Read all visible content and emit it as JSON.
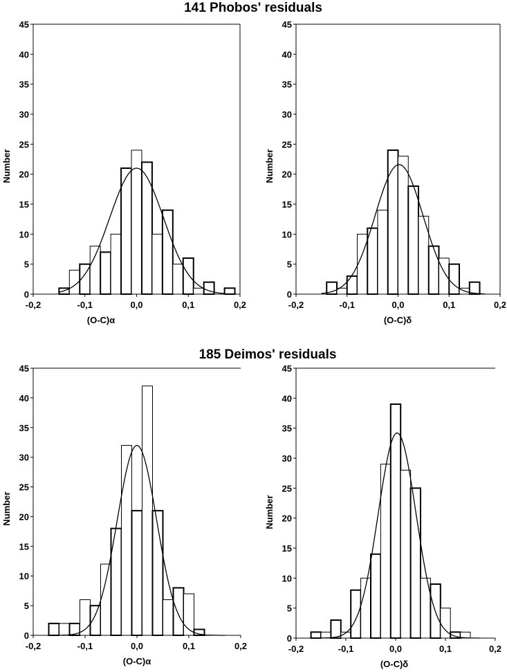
{
  "figure": {
    "phobos_title": "141 Phobos' residuals",
    "deimos_title": "185 Deimos' residuals"
  },
  "chart_data": [
    {
      "type": "bar",
      "group": "Phobos",
      "xlabel": "(O-C)α",
      "ylabel": "Number",
      "xlim": [
        -0.2,
        0.2
      ],
      "ylim": [
        0,
        45
      ],
      "x_ticks": [
        "-0,2",
        "-0,1",
        "0,0",
        "0,1",
        "0,2"
      ],
      "y_ticks": [
        "0",
        "5",
        "10",
        "15",
        "20",
        "25",
        "30",
        "35",
        "40",
        "45"
      ],
      "bins": [
        -0.14,
        -0.12,
        -0.1,
        -0.08,
        -0.06,
        -0.04,
        -0.02,
        0.0,
        0.02,
        0.04,
        0.06,
        0.08,
        0.1,
        0.12,
        0.14,
        0.16,
        0.18
      ],
      "values": [
        1,
        4,
        5,
        8,
        7,
        10,
        21,
        24,
        22,
        10,
        14,
        5,
        6,
        1,
        2,
        0,
        1
      ],
      "bin_width": 0.02,
      "fit": {
        "mean": 0.0,
        "sigma": 0.052,
        "peak": 21
      }
    },
    {
      "type": "bar",
      "group": "Phobos",
      "xlabel": "(O-C)δ",
      "ylabel": "Number",
      "xlim": [
        -0.2,
        0.2
      ],
      "ylim": [
        0,
        45
      ],
      "x_ticks": [
        "-0,2",
        "-0,1",
        "0,0",
        "0,1",
        "0,2"
      ],
      "y_ticks": [
        "0",
        "5",
        "10",
        "15",
        "20",
        "25",
        "30",
        "35",
        "40",
        "45"
      ],
      "bins": [
        -0.13,
        -0.11,
        -0.09,
        -0.07,
        -0.05,
        -0.03,
        -0.01,
        0.01,
        0.03,
        0.05,
        0.07,
        0.09,
        0.11,
        0.13,
        0.15
      ],
      "values": [
        2,
        1,
        3,
        10,
        11,
        14,
        24,
        23,
        18,
        13,
        8,
        6,
        5,
        1,
        2
      ],
      "bin_width": 0.02,
      "fit": {
        "mean": 0.002,
        "sigma": 0.047,
        "peak": 21.6
      }
    },
    {
      "type": "bar",
      "group": "Deimos",
      "xlabel": "(O-C)α",
      "ylabel": "Number",
      "xlim": [
        -0.2,
        0.2
      ],
      "ylim": [
        0,
        45
      ],
      "x_ticks": [
        "-0,2",
        "-0,1",
        "0,0",
        "0,1",
        "0,2"
      ],
      "y_ticks": [
        "0",
        "5",
        "10",
        "15",
        "20",
        "25",
        "30",
        "35",
        "40",
        "45"
      ],
      "bins": [
        -0.16,
        -0.14,
        -0.12,
        -0.1,
        -0.08,
        -0.06,
        -0.04,
        -0.02,
        0.0,
        0.02,
        0.04,
        0.06,
        0.08,
        0.1,
        0.12
      ],
      "values": [
        2,
        2,
        2,
        6,
        5,
        12,
        18,
        32,
        21,
        42,
        21,
        6,
        8,
        7,
        1
      ],
      "bin_width": 0.02,
      "fit": {
        "mean": 0.0,
        "sigma": 0.038,
        "peak": 32
      }
    },
    {
      "type": "bar",
      "group": "Deimos",
      "xlabel": "(O-C)δ",
      "ylabel": "Number",
      "xlim": [
        -0.2,
        0.2
      ],
      "ylim": [
        0,
        45
      ],
      "x_ticks": [
        "-0,2",
        "-0,1",
        "0,0",
        "0,1",
        "0,2"
      ],
      "y_ticks": [
        "0",
        "5",
        "10",
        "15",
        "20",
        "25",
        "30",
        "35",
        "40",
        "45"
      ],
      "bins": [
        -0.16,
        -0.14,
        -0.12,
        -0.1,
        -0.08,
        -0.06,
        -0.04,
        -0.02,
        0.0,
        0.02,
        0.04,
        0.06,
        0.08,
        0.1,
        0.12,
        0.14
      ],
      "values": [
        1,
        1,
        3,
        1,
        8,
        10,
        14,
        29,
        39,
        28,
        25,
        10,
        9,
        5,
        1,
        1
      ],
      "bin_width": 0.02,
      "fit": {
        "mean": 0.003,
        "sigma": 0.038,
        "peak": 34.2
      }
    }
  ]
}
